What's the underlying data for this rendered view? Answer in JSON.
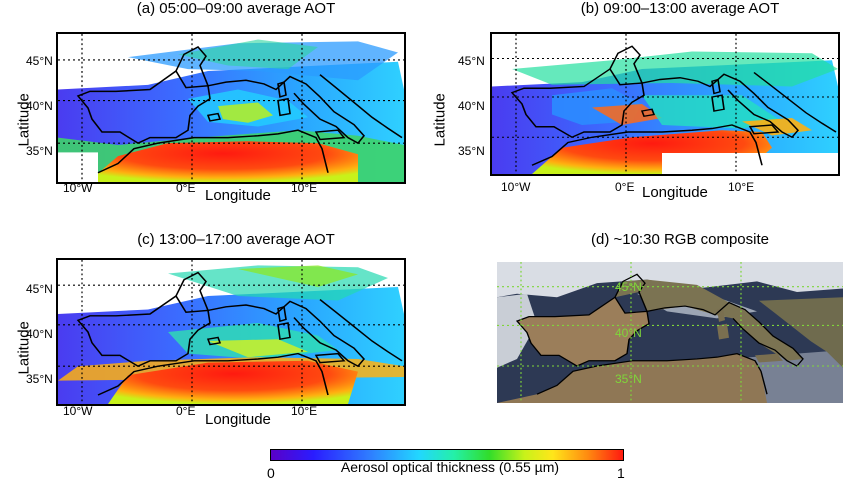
{
  "panels": [
    {
      "title": "(a) 05:00–09:00 average AOT",
      "ylabel": "Latitude",
      "xlabel": "Longitude",
      "lat_ticks": [
        "45°N",
        "40°N",
        "35°N"
      ],
      "lon_ticks": [
        "10°W",
        "0°E",
        "10°E"
      ]
    },
    {
      "title": "(b) 09:00–13:00 average AOT",
      "ylabel": "Latitude",
      "xlabel": "Longitude",
      "lat_ticks": [
        "45°N",
        "40°N",
        "35°N"
      ],
      "lon_ticks": [
        "10°W",
        "0°E",
        "10°E"
      ]
    },
    {
      "title": "(c) 13:00–17:00 average AOT",
      "ylabel": "Latitude",
      "xlabel": "Longitude",
      "lat_ticks": [
        "45°N",
        "40°N",
        "35°N"
      ],
      "lon_ticks": [
        "10°W",
        "0°E",
        "10°E"
      ]
    },
    {
      "title": "(d) ~10:30 RGB composite",
      "lat_ticks": [
        "45°N",
        "40°N",
        "35°N"
      ]
    }
  ],
  "colorbar": {
    "label": "Aerosol optical thickness (0.55 µm)",
    "min": "0",
    "max": "1",
    "colormap": [
      "#5a00c8",
      "#2a1cff",
      "#2f7dff",
      "#22d7ff",
      "#24f0a8",
      "#31dd2a",
      "#c8f21a",
      "#ffe61a",
      "#ff8a10",
      "#ff1a10"
    ]
  }
}
